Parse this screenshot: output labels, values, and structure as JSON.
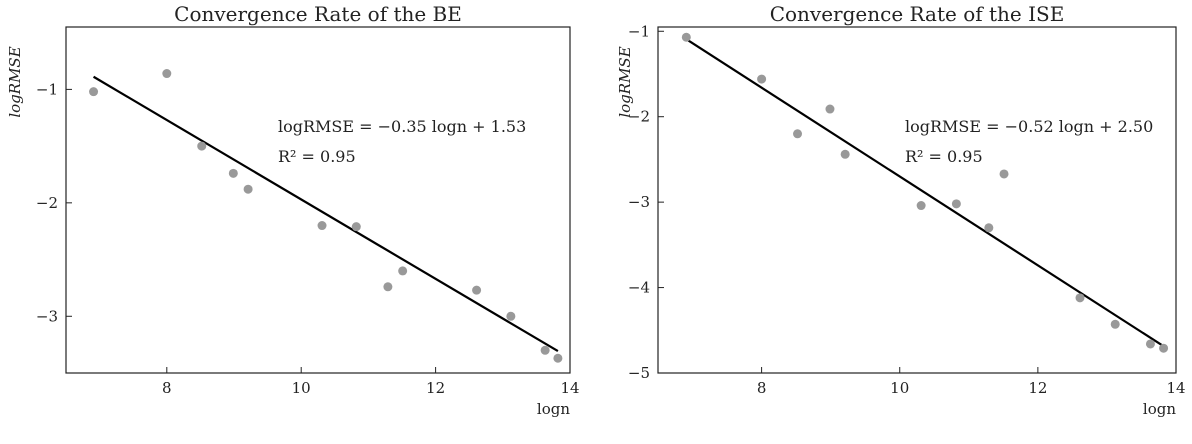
{
  "chart_data": [
    {
      "type": "scatter",
      "title": "Convergence Rate of the BE",
      "xlabel": "logn",
      "ylabel": "logRMSE",
      "xlim": [
        6.5,
        14
      ],
      "ylim": [
        -3.5,
        -0.45
      ],
      "xticks": [
        8,
        10,
        12,
        14
      ],
      "yticks": [
        -1,
        -2,
        -3
      ],
      "xtick_labels": [
        "8",
        "10",
        "12",
        "14"
      ],
      "ytick_labels": [
        "−1",
        "−2",
        "−3"
      ],
      "grid": false,
      "point_color": "#999999",
      "line_color": "#000000",
      "series": [
        {
          "x": [
            6.91,
            8.0,
            8.52,
            8.99,
            9.21,
            10.31,
            10.82,
            11.29,
            11.51,
            12.61,
            13.12,
            13.63,
            13.82
          ],
          "y": [
            -1.02,
            -0.86,
            -1.5,
            -1.74,
            -1.88,
            -2.2,
            -2.21,
            -2.74,
            -2.6,
            -2.77,
            -3.0,
            -3.3,
            -3.37
          ]
        }
      ],
      "fit": {
        "slope": -0.35,
        "intercept": 1.53,
        "x_range": [
          6.91,
          13.82
        ]
      },
      "annotations": [
        "logRMSE = −0.35 logn + 1.53",
        "R² = 0.95"
      ]
    },
    {
      "type": "scatter",
      "title": "Convergence Rate of the ISE",
      "xlabel": "logn",
      "ylabel": "logRMSE",
      "xlim": [
        6.5,
        14
      ],
      "ylim": [
        -5,
        -0.95
      ],
      "xticks": [
        8,
        10,
        12,
        14
      ],
      "yticks": [
        -1,
        -2,
        -3,
        -4,
        -5
      ],
      "xtick_labels": [
        "8",
        "10",
        "12",
        "14"
      ],
      "ytick_labels": [
        "−1",
        "−2",
        "−3",
        "−4",
        "−5"
      ],
      "grid": false,
      "point_color": "#999999",
      "line_color": "#000000",
      "series": [
        {
          "x": [
            6.91,
            8.0,
            8.52,
            8.99,
            9.21,
            10.31,
            10.82,
            11.29,
            11.51,
            12.61,
            13.12,
            13.63,
            13.82
          ],
          "y": [
            -1.07,
            -1.56,
            -2.2,
            -1.91,
            -2.44,
            -3.04,
            -3.02,
            -3.3,
            -2.67,
            -4.12,
            -4.43,
            -4.66,
            -4.71
          ]
        }
      ],
      "fit": {
        "slope": -0.52,
        "intercept": 2.5,
        "x_range": [
          6.91,
          13.82
        ]
      },
      "annotations": [
        "logRMSE = −0.52 logn + 2.50",
        "R² = 0.95"
      ]
    }
  ]
}
